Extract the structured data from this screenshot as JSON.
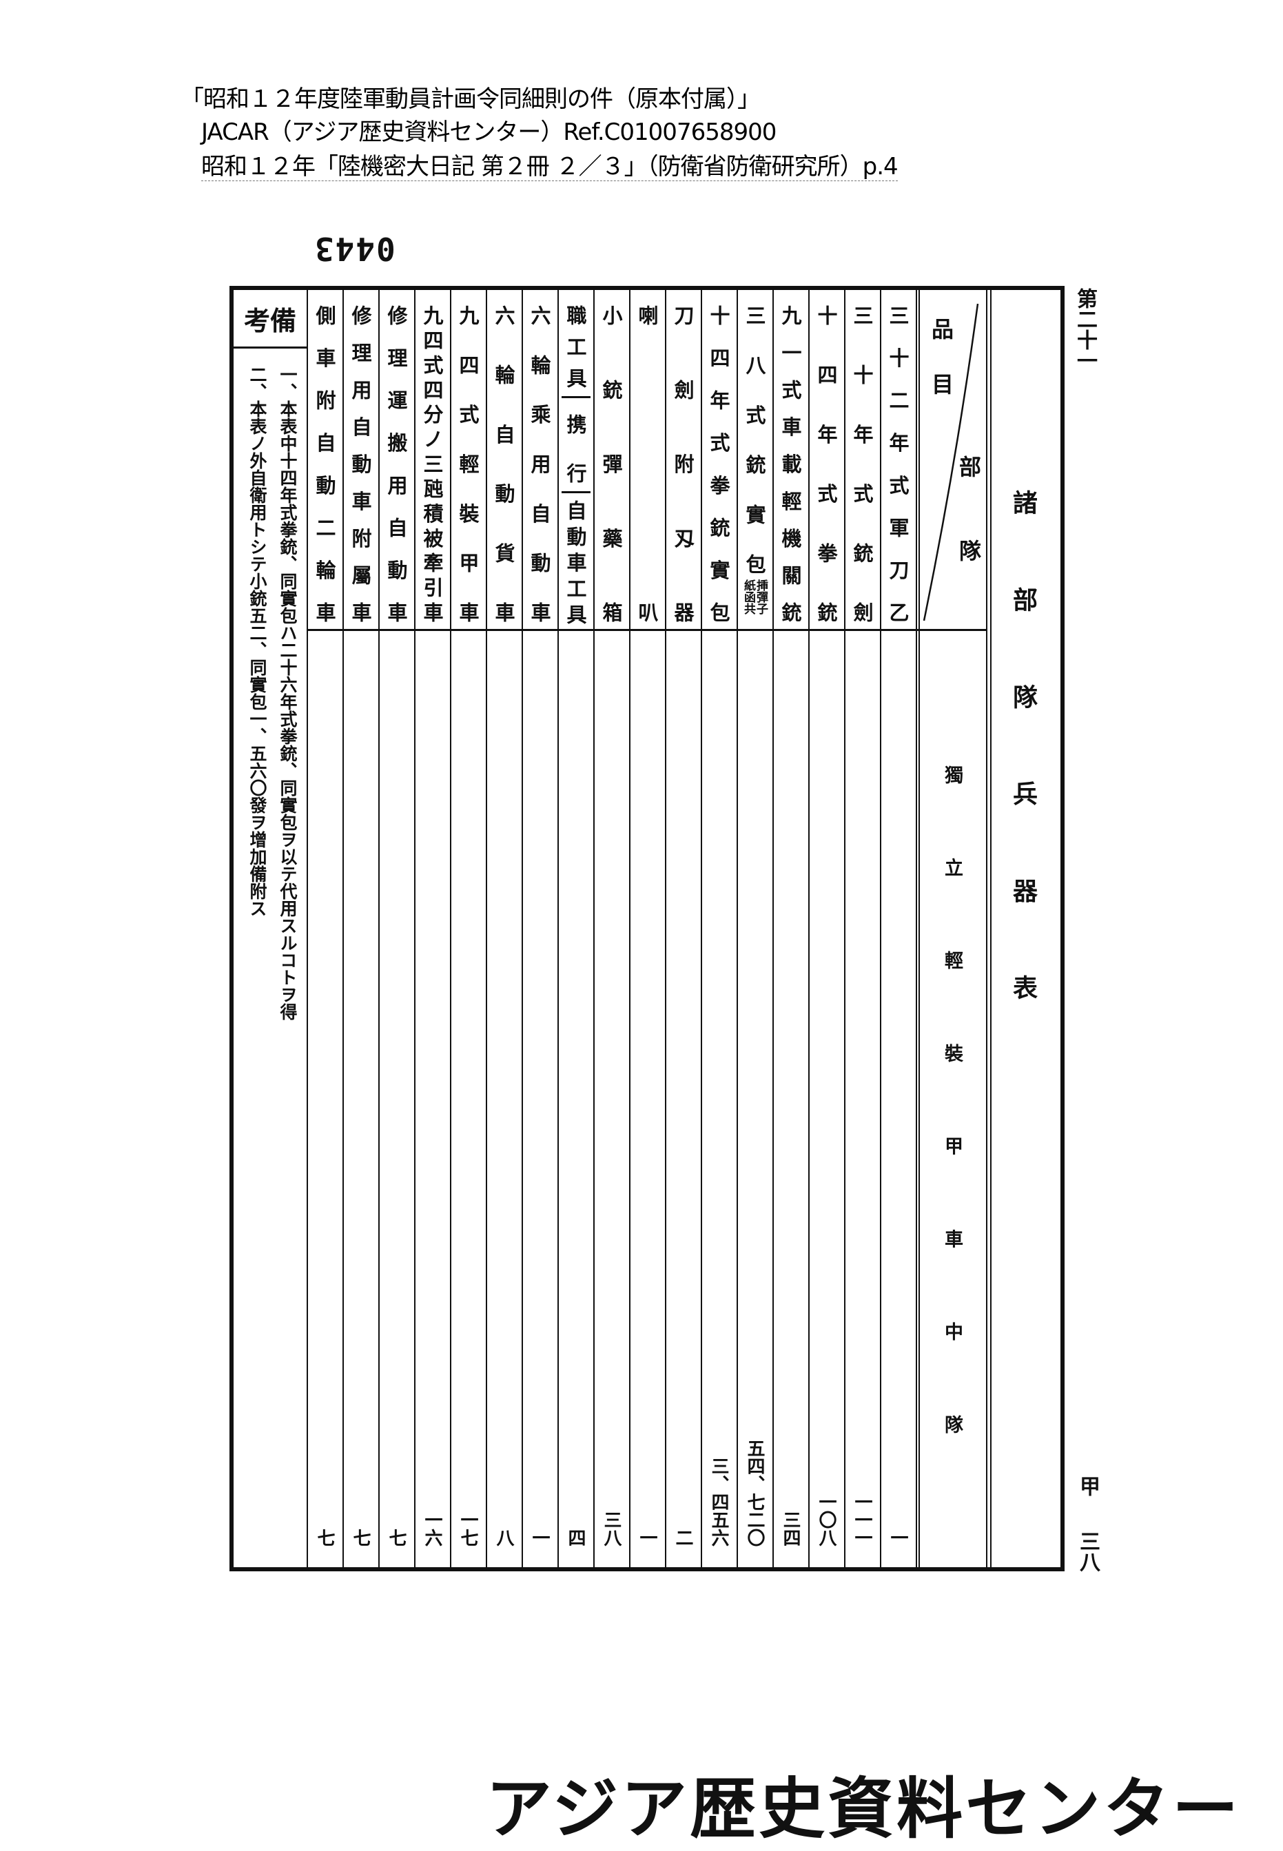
{
  "header": {
    "line1": "「昭和１２年度陸軍動員計画令同細則の件（原本付属）」",
    "line2": "JACAR（アジア歴史資料センター）Ref.C01007658900",
    "line3": "昭和１２年「陸機密大日記 第２冊 ２／３」（防衛省防衛研究所）p.4"
  },
  "page_stamp": "0443",
  "table": {
    "title": "諸部隊兵器表",
    "corner_header": {
      "item": "品目",
      "unit": "部隊"
    },
    "unit_name": "獨立輕裝甲車中隊",
    "remarks_header": "備考",
    "remarks": [
      "一、本表中十四年式拳銃、同實包ハ二十六年式拳銃、同實包ヲ以テ代用スルコトヲ得",
      "二、本表ノ外自衛用トシテ小銃五二、同實包一、五六〇發ヲ增加備附ス"
    ],
    "columns": [
      {
        "name": "側車附自動二輪車",
        "value": "七"
      },
      {
        "name": "修理用自動車附屬車",
        "value": "七"
      },
      {
        "name": "修理運搬用自動車",
        "value": "七"
      },
      {
        "name": "九四式四分ノ三瓲積被牽引車",
        "value": "一六"
      },
      {
        "name": "九四式輕裝甲車",
        "value": "一七"
      },
      {
        "name": "六輪自動貨車",
        "value": "八"
      },
      {
        "name": "六輪乘用自動車",
        "value": "一"
      },
      {
        "name": "職工具",
        "parts": [
          "職工具",
          "携行",
          "自動車工具"
        ],
        "value": "四"
      },
      {
        "name": "小銃彈藥箱",
        "value": "三八"
      },
      {
        "name": "喇叭",
        "value": "一"
      },
      {
        "name": "刀劍附刄器",
        "value": "二"
      },
      {
        "name": "十四年式拳銃實包",
        "value": "三、四五六"
      },
      {
        "name": "三八式銃實包",
        "note": "挿彈子紙函共",
        "value": "五四、七二〇"
      },
      {
        "name": "九一式車載輕機關銃",
        "value": "三四"
      },
      {
        "name": "十四年式拳銃",
        "value": "一〇八"
      },
      {
        "name": "三十年式銃劍",
        "value": "一一一"
      },
      {
        "name": "三十二年式軍刀乙",
        "value": "一"
      }
    ]
  },
  "margin": {
    "sheet_no": "第二十一",
    "series": "甲",
    "page": "三八"
  },
  "footer": "アジア歴史資料センター"
}
